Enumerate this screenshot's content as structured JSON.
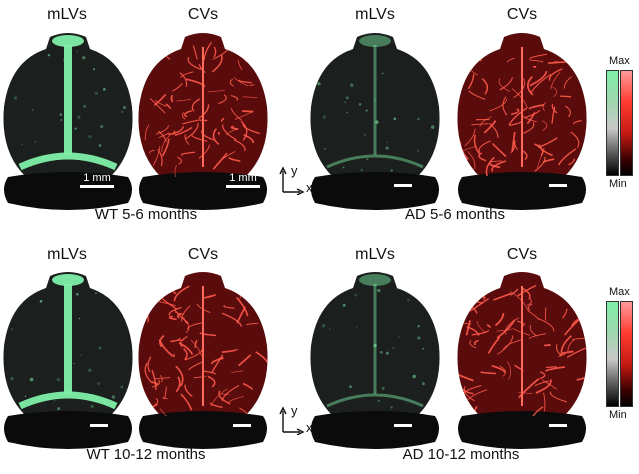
{
  "rows": [
    {
      "panels": [
        {
          "title": "mLVs",
          "type": "lymph",
          "scale": "1 mm"
        },
        {
          "title": "CVs",
          "type": "vessel",
          "scale": "1 mm"
        },
        {
          "title": "mLVs",
          "type": "lymph",
          "scale": ""
        },
        {
          "title": "CVs",
          "type": "vessel",
          "scale": ""
        }
      ],
      "group_left": "WT 5-6 months",
      "group_right": "AD 5-6 months"
    },
    {
      "panels": [
        {
          "title": "mLVs",
          "type": "lymph",
          "scale": ""
        },
        {
          "title": "CVs",
          "type": "vessel",
          "scale": ""
        },
        {
          "title": "mLVs",
          "type": "lymph",
          "scale": ""
        },
        {
          "title": "CVs",
          "type": "vessel",
          "scale": ""
        }
      ],
      "group_left": "WT 10-12 months",
      "group_right": "AD 10-12 months"
    }
  ],
  "axes": {
    "y": "y",
    "x": "x"
  },
  "legend": {
    "max": "Max",
    "min": "Min"
  },
  "colors": {
    "lymph": "#7ff0a8",
    "vessel": "#ff3b30",
    "bg": "#111111"
  }
}
